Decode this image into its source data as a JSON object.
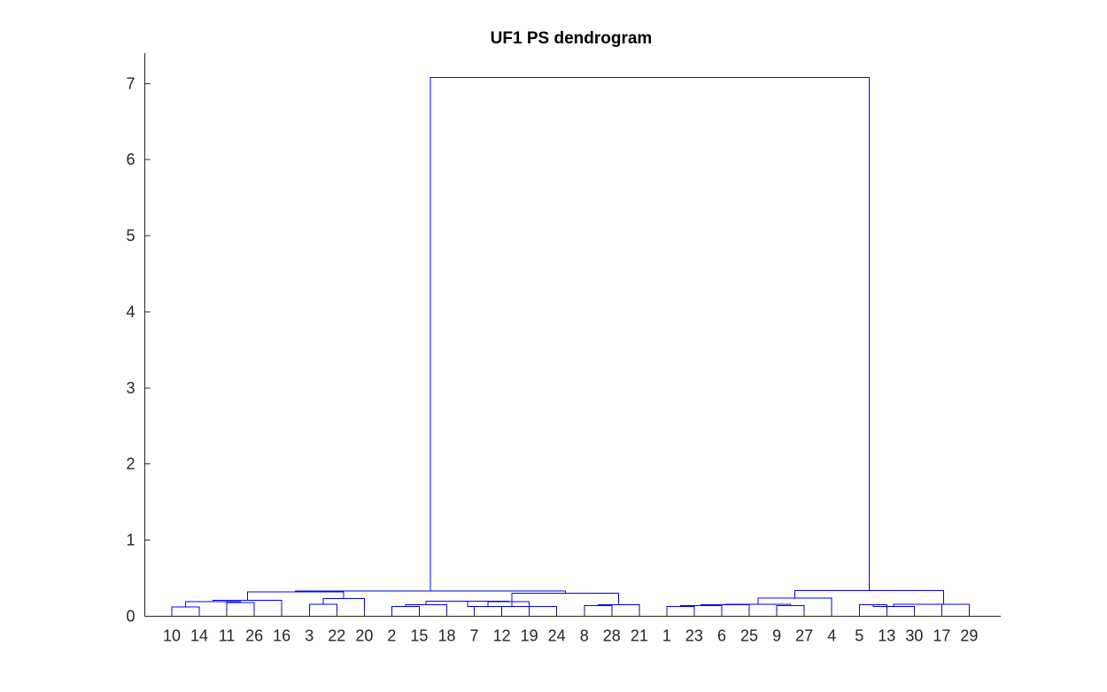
{
  "chart_data": {
    "type": "dendrogram",
    "title": "UF1 PS dendrogram",
    "xlabel": "",
    "ylabel": "",
    "ylim": [
      0,
      7.4
    ],
    "y_ticks": [
      0,
      1,
      2,
      3,
      4,
      5,
      6,
      7
    ],
    "grid": false,
    "link_color": "#0000ff",
    "axis_color": "#262626",
    "leaf_order": [
      "10",
      "14",
      "11",
      "26",
      "16",
      "3",
      "22",
      "20",
      "2",
      "15",
      "18",
      "7",
      "12",
      "19",
      "24",
      "8",
      "28",
      "21",
      "1",
      "23",
      "6",
      "25",
      "9",
      "27",
      "4",
      "5",
      "13",
      "30",
      "17",
      "29"
    ],
    "merges": [
      {
        "left": "10",
        "right": "14",
        "height": 0.12
      },
      {
        "left": "11",
        "right": "26",
        "height": 0.18
      },
      {
        "left": "c1",
        "right": "c2",
        "height": 0.19
      },
      {
        "left": "c3",
        "right": "16",
        "height": 0.21
      },
      {
        "left": "3",
        "right": "22",
        "height": 0.16
      },
      {
        "left": "c5",
        "right": "20",
        "height": 0.23
      },
      {
        "left": "c4",
        "right": "c6",
        "height": 0.32
      },
      {
        "left": "2",
        "right": "15",
        "height": 0.13
      },
      {
        "left": "c8",
        "right": "18",
        "height": 0.15
      },
      {
        "left": "7",
        "right": "12",
        "height": 0.13
      },
      {
        "left": "c10",
        "right": "19",
        "height": 0.19
      },
      {
        "left": "c9",
        "right": "c11",
        "height": 0.2
      },
      {
        "left": "c12",
        "right": "24",
        "height": 0.13
      },
      {
        "left": "8",
        "right": "28",
        "height": 0.14
      },
      {
        "left": "c14",
        "right": "21",
        "height": 0.15
      },
      {
        "left": "c13",
        "right": "c15",
        "height": 0.3
      },
      {
        "left": "c7",
        "right": "c16",
        "height": 0.33
      },
      {
        "left": "1",
        "right": "23",
        "height": 0.13
      },
      {
        "left": "c18",
        "right": "6",
        "height": 0.14
      },
      {
        "left": "c19",
        "right": "25",
        "height": 0.15
      },
      {
        "left": "9",
        "right": "27",
        "height": 0.14
      },
      {
        "left": "c20",
        "right": "c21",
        "height": 0.16
      },
      {
        "left": "c22",
        "right": "4",
        "height": 0.24
      },
      {
        "left": "5",
        "right": "13",
        "height": 0.15
      },
      {
        "left": "c24",
        "right": "30",
        "height": 0.13
      },
      {
        "left": "c25",
        "right": "17",
        "height": 0.16
      },
      {
        "left": "c26",
        "right": "29",
        "height": 0.16
      },
      {
        "left": "c23",
        "right": "c27",
        "height": 0.34
      },
      {
        "left": "c17",
        "right": "c28",
        "height": 7.08
      }
    ]
  }
}
